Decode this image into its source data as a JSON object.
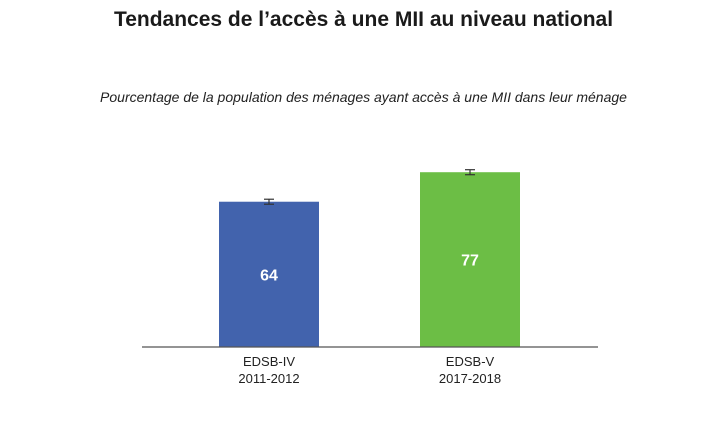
{
  "title": "Tendances de l’accès à une MII au niveau national",
  "subtitle": "Pourcentage de la population des ménages ayant accès à une MII dans leur ménage",
  "colors": {
    "bar_1": "#4263ad",
    "bar_2": "#6cbe45",
    "axis": "#555555",
    "error_bar": "#333333"
  },
  "chart_data": {
    "type": "bar",
    "categories": [
      [
        "EDSB-IV",
        "2011-2012"
      ],
      [
        "EDSB-V",
        "2017-2018"
      ]
    ],
    "values": [
      64,
      77
    ],
    "data_labels": [
      "64",
      "77"
    ],
    "error_bars": true,
    "ylim": [
      0,
      100
    ],
    "grid": false,
    "legend": "none"
  }
}
